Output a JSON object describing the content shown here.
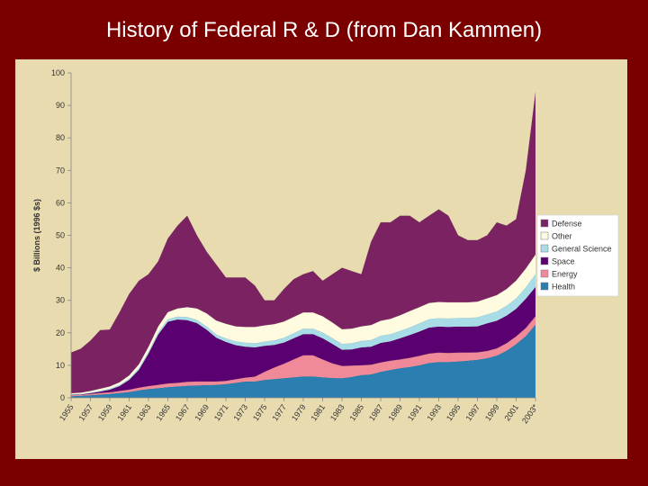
{
  "slide": {
    "title": "History of Federal R & D (from Dan Kammen)"
  },
  "chart_data": {
    "type": "area",
    "stacked": true,
    "title": "",
    "ylabel": "$ Billions (1996 $s)",
    "xlabel": "",
    "ylim": [
      0,
      100
    ],
    "yticks": [
      "0",
      "10",
      "20",
      "30",
      "40",
      "50",
      "60",
      "70",
      "80",
      "90",
      "100"
    ],
    "x_tick_labels": [
      "1955",
      "1957",
      "1959",
      "1961",
      "1963",
      "1965",
      "1967",
      "1969",
      "1971",
      "1973",
      "1975",
      "1977",
      "1979",
      "1981",
      "1983",
      "1985",
      "1987",
      "1989",
      "1991",
      "1993",
      "1995",
      "1997",
      "1999",
      "2001",
      "2003*"
    ],
    "x": [
      1955,
      1956,
      1957,
      1958,
      1959,
      1960,
      1961,
      1962,
      1963,
      1964,
      1965,
      1966,
      1967,
      1968,
      1969,
      1970,
      1971,
      1972,
      1973,
      1974,
      1975,
      1976,
      1977,
      1978,
      1979,
      1980,
      1981,
      1982,
      1983,
      1984,
      1985,
      1986,
      1987,
      1988,
      1989,
      1990,
      1991,
      1992,
      1993,
      1994,
      1995,
      1996,
      1997,
      1998,
      1999,
      2000,
      2001,
      2002,
      2003
    ],
    "legend_position": "right",
    "series": [
      {
        "name": "Health",
        "color": "#2a7fb0",
        "values": [
          0.5,
          0.6,
          0.8,
          1.0,
          1.2,
          1.5,
          1.8,
          2.3,
          2.7,
          3.0,
          3.3,
          3.5,
          3.7,
          3.8,
          3.9,
          4.0,
          4.2,
          4.6,
          5.0,
          5.0,
          5.5,
          5.8,
          6.0,
          6.3,
          6.6,
          6.6,
          6.3,
          6.1,
          6.0,
          6.4,
          7.0,
          7.2,
          8.0,
          8.6,
          9.1,
          9.5,
          10.0,
          10.7,
          11.0,
          11.0,
          11.2,
          11.4,
          11.7,
          12.2,
          13.0,
          14.5,
          16.5,
          19.0,
          22.5
        ]
      },
      {
        "name": "Energy",
        "color": "#f08a98",
        "values": [
          0.3,
          0.3,
          0.4,
          0.5,
          0.5,
          0.6,
          0.7,
          0.8,
          0.9,
          1.0,
          1.1,
          1.1,
          1.2,
          1.2,
          1.1,
          1.0,
          1.0,
          1.1,
          1.2,
          1.5,
          2.5,
          3.5,
          4.5,
          5.5,
          6.5,
          6.5,
          5.5,
          4.5,
          3.8,
          3.5,
          3.0,
          3.0,
          2.9,
          2.8,
          2.7,
          2.8,
          2.9,
          2.9,
          2.9,
          2.8,
          2.7,
          2.5,
          2.3,
          2.2,
          2.2,
          2.3,
          2.4,
          2.5,
          2.6
        ]
      },
      {
        "name": "Space",
        "color": "#5a0070",
        "values": [
          0.1,
          0.1,
          0.2,
          0.4,
          0.8,
          1.5,
          3.0,
          5.5,
          10.0,
          15.5,
          19.0,
          19.5,
          19.0,
          18.0,
          16.0,
          13.5,
          12.0,
          10.5,
          9.5,
          9.0,
          8.0,
          7.0,
          6.5,
          6.5,
          6.5,
          6.5,
          6.5,
          6.0,
          5.0,
          5.0,
          5.5,
          5.5,
          6.0,
          6.0,
          6.5,
          7.0,
          7.5,
          8.0,
          8.0,
          8.0,
          8.0,
          8.0,
          8.0,
          8.5,
          8.5,
          8.5,
          8.5,
          9.0,
          9.0
        ]
      },
      {
        "name": "General Science",
        "color": "#a8dde8",
        "values": [
          0.2,
          0.2,
          0.2,
          0.3,
          0.3,
          0.4,
          0.4,
          0.5,
          0.6,
          0.7,
          0.8,
          0.9,
          1.0,
          1.0,
          1.0,
          1.0,
          1.1,
          1.2,
          1.3,
          1.3,
          1.3,
          1.4,
          1.5,
          1.6,
          1.7,
          1.7,
          1.8,
          1.8,
          1.8,
          1.9,
          2.0,
          2.1,
          2.2,
          2.2,
          2.3,
          2.4,
          2.5,
          2.6,
          2.6,
          2.6,
          2.7,
          2.7,
          2.8,
          2.8,
          2.9,
          3.0,
          3.2,
          3.5,
          4.0
        ]
      },
      {
        "name": "Other",
        "color": "#fffbe0",
        "values": [
          0.3,
          0.4,
          0.5,
          0.6,
          0.7,
          0.8,
          1.0,
          1.2,
          1.5,
          1.8,
          2.2,
          2.5,
          3.0,
          3.5,
          4.0,
          4.3,
          4.5,
          4.6,
          4.8,
          5.0,
          5.0,
          5.0,
          5.0,
          5.0,
          5.0,
          5.0,
          5.0,
          4.8,
          4.5,
          4.5,
          4.5,
          4.6,
          4.6,
          4.7,
          4.8,
          5.0,
          5.0,
          5.0,
          5.0,
          5.0,
          4.8,
          4.8,
          4.8,
          4.9,
          5.0,
          5.2,
          5.5,
          5.8,
          6.0
        ]
      },
      {
        "name": "Defense",
        "color": "#7b2262",
        "values": [
          12.5,
          13.5,
          15.5,
          18.0,
          17.5,
          21.5,
          25.0,
          25.7,
          22.3,
          20.0,
          22.6,
          25.5,
          28.1,
          22.5,
          19.0,
          17.2,
          14.2,
          15.0,
          15.2,
          12.7,
          7.7,
          7.3,
          10.0,
          11.6,
          11.7,
          12.7,
          10.9,
          14.8,
          18.9,
          17.7,
          16.0,
          25.6,
          30.3,
          29.7,
          30.6,
          29.3,
          26.1,
          26.8,
          28.5,
          26.6,
          20.6,
          19.1,
          18.9,
          19.4,
          22.4,
          19.5,
          18.9,
          30.2,
          49.9
        ]
      }
    ]
  }
}
